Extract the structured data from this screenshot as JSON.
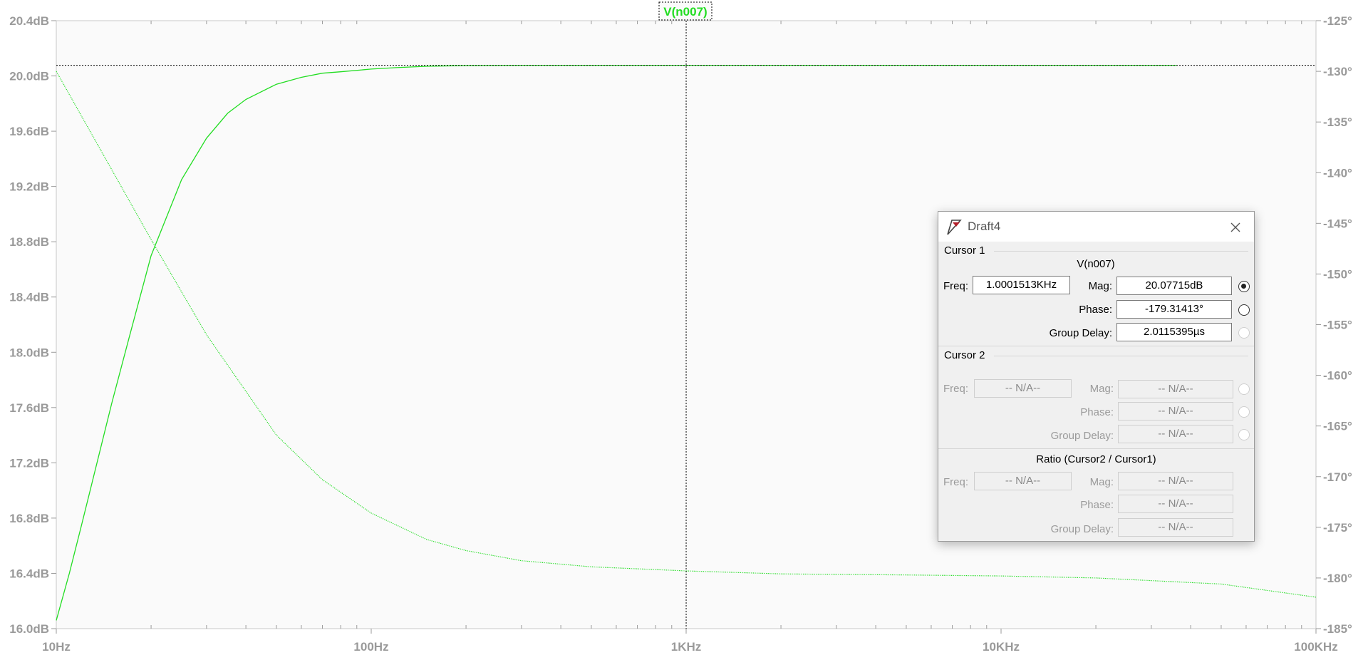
{
  "trace_label": "V(n007)",
  "colors": {
    "trace": "#22dd22",
    "background": "#fafafa",
    "axis_text": "#9a9a9a",
    "cursor_line": "#000000"
  },
  "chart_data": {
    "type": "line",
    "x_scale": "log",
    "xlim": [
      10,
      100000
    ],
    "xticks": [
      "10Hz",
      "100Hz",
      "1KHz",
      "10KHz",
      "100KHz"
    ],
    "ylim_left": [
      16.0,
      20.4
    ],
    "yticks_left": [
      "20.4dB",
      "20.0dB",
      "19.6dB",
      "19.2dB",
      "18.8dB",
      "18.4dB",
      "18.0dB",
      "17.6dB",
      "17.2dB",
      "16.8dB",
      "16.4dB",
      "16.0dB"
    ],
    "ylim_right": [
      -185,
      -125
    ],
    "yticks_right": [
      "-125°",
      "-130°",
      "-135°",
      "-140°",
      "-145°",
      "-150°",
      "-155°",
      "-160°",
      "-165°",
      "-170°",
      "-175°",
      "-180°",
      "-185°"
    ],
    "grid": false,
    "cursor_x": 1000.1513,
    "cursor_y_db": 20.07715,
    "series": [
      {
        "name": "V(n007)",
        "axis": "left",
        "style": "solid",
        "x": [
          10,
          11,
          12,
          13,
          15,
          17,
          20,
          25,
          30,
          35,
          40,
          50,
          60,
          70,
          80,
          100,
          120,
          150,
          200,
          300,
          500,
          1000,
          3000,
          10000,
          36000
        ],
        "y": [
          16.06,
          16.4,
          16.74,
          17.06,
          17.63,
          18.1,
          18.7,
          19.25,
          19.55,
          19.73,
          19.83,
          19.94,
          19.99,
          20.02,
          20.03,
          20.05,
          20.06,
          20.07,
          20.075,
          20.077,
          20.077,
          20.077,
          20.077,
          20.077,
          20.077
        ]
      },
      {
        "name": "V(n007)",
        "axis": "right",
        "style": "dotted",
        "x": [
          10,
          15,
          20,
          30,
          50,
          70,
          100,
          150,
          200,
          300,
          500,
          1000,
          2000,
          5000,
          10000,
          20000,
          50000,
          100000
        ],
        "y": [
          -130.0,
          -139.7,
          -146.6,
          -156.0,
          -165.9,
          -170.3,
          -173.6,
          -176.2,
          -177.3,
          -178.3,
          -178.9,
          -179.3,
          -179.6,
          -179.7,
          -179.8,
          -180.0,
          -180.6,
          -181.9
        ]
      }
    ]
  },
  "dialog": {
    "title": "Draft4",
    "cursor1": {
      "heading": "Cursor 1",
      "trace": "V(n007)",
      "freq_label": "Freq:",
      "freq": "1.0001513KHz",
      "mag_label": "Mag:",
      "mag": "20.07715dB",
      "phase_label": "Phase:",
      "phase": "-179.31413°",
      "gd_label": "Group Delay:",
      "gd": "2.0115395µs"
    },
    "cursor2": {
      "heading": "Cursor 2",
      "freq_label": "Freq:",
      "freq": "-- N/A--",
      "mag_label": "Mag:",
      "mag": "-- N/A--",
      "phase_label": "Phase:",
      "phase": "-- N/A--",
      "gd_label": "Group Delay:",
      "gd": "-- N/A--"
    },
    "ratio": {
      "heading": "Ratio (Cursor2 / Cursor1)",
      "freq_label": "Freq:",
      "freq": "-- N/A--",
      "mag_label": "Mag:",
      "mag": "-- N/A--",
      "phase_label": "Phase:",
      "phase": "-- N/A--",
      "gd_label": "Group Delay:",
      "gd": "-- N/A--"
    }
  }
}
